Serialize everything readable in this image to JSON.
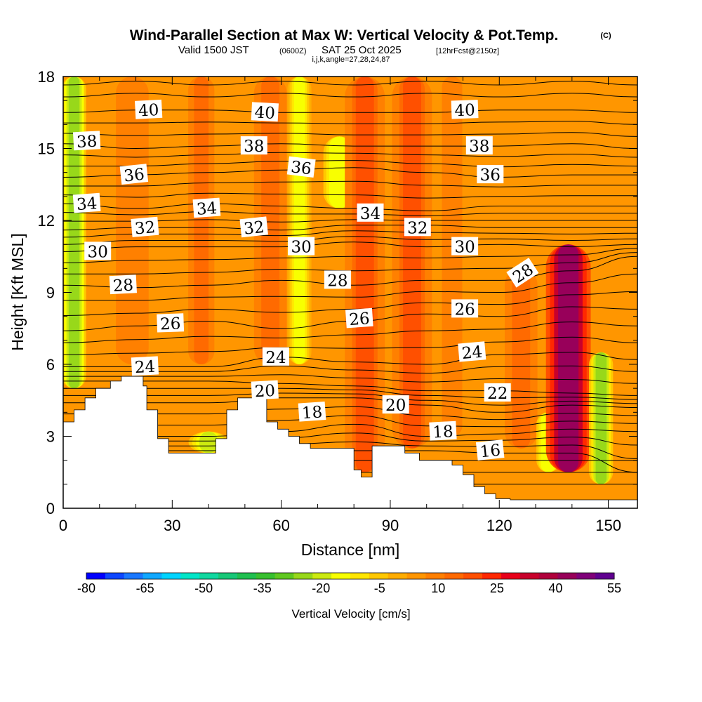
{
  "header": {
    "title": "Wind-Parallel Section at Max W: Vertical Velocity & Pot.Temp.",
    "title_mark": "(C)",
    "valid_prefix": "Valid 1500 JST",
    "valid_utc": "(0600Z)",
    "valid_date": "SAT 25 Oct 2025",
    "forecast": "[12hrFcst@2150z]",
    "indices": "i,j,k,angle=27,28,24,87"
  },
  "colorbar": {
    "title": "Vertical Velocity [cm/s]",
    "tick_labels": [
      "-80",
      "-65",
      "-50",
      "-35",
      "-20",
      "-5",
      "10",
      "25",
      "40",
      "55"
    ],
    "colors": [
      "#0000ff",
      "#0d47ff",
      "#1a78ff",
      "#10a8ff",
      "#00d4ff",
      "#00e6c8",
      "#10d8a0",
      "#18c878",
      "#20c050",
      "#38c030",
      "#60c820",
      "#98d81a",
      "#ccea10",
      "#f8ff00",
      "#ffe600",
      "#ffc800",
      "#ffad00",
      "#ff9600",
      "#ff8000",
      "#ff6a00",
      "#ff5000",
      "#ff2800",
      "#e8001a",
      "#c8002c",
      "#b0003c",
      "#98005a",
      "#80007a",
      "#600090"
    ]
  },
  "chart_data": {
    "type": "heatmap",
    "title": "Wind-Parallel Section at Max W: Vertical Velocity & Pot.Temp.",
    "xlabel": "Distance [nm]",
    "ylabel": "Height [Kft MSL]",
    "xlim": [
      0,
      158
    ],
    "ylim": [
      0,
      18
    ],
    "x_ticks": [
      0,
      30,
      60,
      90,
      120,
      150
    ],
    "y_ticks": [
      0,
      3,
      6,
      9,
      12,
      15,
      18
    ],
    "x_tick_labels": [
      "0",
      "30",
      "60",
      "90",
      "120",
      "150"
    ],
    "y_tick_labels": [
      "0",
      "3",
      "6",
      "9",
      "12",
      "15",
      "18"
    ],
    "fill_variable": "Vertical Velocity [cm/s]",
    "contour_variable": "Pot.Temp. (C)",
    "colorbar_range": [
      -80,
      55
    ],
    "background_value": 3,
    "velocity_features": [
      {
        "x": 3,
        "w": 1.5,
        "value": -30,
        "from": 5,
        "to": 18
      },
      {
        "x": 19,
        "w": 2.5,
        "value": 12,
        "from": 6,
        "to": 18
      },
      {
        "x": 38,
        "w": 2,
        "value": 14,
        "from": 6,
        "to": 18
      },
      {
        "x": 40,
        "w": 2.5,
        "value": -22,
        "from": 2.3,
        "to": 3.2
      },
      {
        "x": 57,
        "w": 2.5,
        "value": 13,
        "from": 6,
        "to": 18
      },
      {
        "x": 65,
        "w": 1.5,
        "value": -15,
        "from": 6,
        "to": 18
      },
      {
        "x": 76,
        "w": 2,
        "value": -20,
        "from": 12.5,
        "to": 15.5
      },
      {
        "x": 83,
        "w": 2.5,
        "value": 20,
        "from": 1.5,
        "to": 18
      },
      {
        "x": 96,
        "w": 2.5,
        "value": 20,
        "from": 2.5,
        "to": 18
      },
      {
        "x": 107,
        "w": 2,
        "value": 10,
        "from": 3,
        "to": 18
      },
      {
        "x": 126,
        "w": 2.5,
        "value": 14,
        "from": 2.5,
        "to": 10
      },
      {
        "x": 133.5,
        "w": 1.5,
        "value": -20,
        "from": 1.5,
        "to": 4
      },
      {
        "x": 139,
        "w": 2.8,
        "value": 50,
        "from": 1.5,
        "to": 11
      },
      {
        "x": 148,
        "w": 1.5,
        "value": -28,
        "from": 1,
        "to": 6.5
      }
    ],
    "terrain": [
      [
        0,
        3.6
      ],
      [
        3,
        3.6
      ],
      [
        3,
        4.1
      ],
      [
        6,
        4.1
      ],
      [
        6,
        4.6
      ],
      [
        9,
        4.6
      ],
      [
        9,
        5.0
      ],
      [
        13,
        5.0
      ],
      [
        13,
        5.3
      ],
      [
        16,
        5.3
      ],
      [
        16,
        5.5
      ],
      [
        22,
        5.5
      ],
      [
        22,
        5.1
      ],
      [
        23,
        5.1
      ],
      [
        23,
        4.1
      ],
      [
        26,
        4.1
      ],
      [
        26,
        2.9
      ],
      [
        29,
        2.9
      ],
      [
        29,
        2.3
      ],
      [
        42,
        2.3
      ],
      [
        42,
        2.9
      ],
      [
        45,
        2.9
      ],
      [
        45,
        4.1
      ],
      [
        48,
        4.1
      ],
      [
        48,
        4.6
      ],
      [
        56,
        4.6
      ],
      [
        56,
        3.6
      ],
      [
        59,
        3.6
      ],
      [
        59,
        3.3
      ],
      [
        62,
        3.3
      ],
      [
        62,
        3.0
      ],
      [
        65,
        3.0
      ],
      [
        65,
        2.7
      ],
      [
        68,
        2.7
      ],
      [
        68,
        2.5
      ],
      [
        80,
        2.5
      ],
      [
        80,
        1.6
      ],
      [
        82,
        1.6
      ],
      [
        82,
        1.3
      ],
      [
        85,
        1.3
      ],
      [
        85,
        2.6
      ],
      [
        94,
        2.6
      ],
      [
        94,
        2.3
      ],
      [
        98,
        2.3
      ],
      [
        98,
        2.0
      ],
      [
        107,
        2.0
      ],
      [
        107,
        1.8
      ],
      [
        110,
        1.8
      ],
      [
        110,
        1.4
      ],
      [
        113,
        1.4
      ],
      [
        113,
        0.9
      ],
      [
        116,
        0.9
      ],
      [
        116,
        0.6
      ],
      [
        119,
        0.6
      ],
      [
        119,
        0.4
      ],
      [
        123,
        0.4
      ],
      [
        123,
        0.35
      ],
      [
        158,
        0.35
      ]
    ],
    "contour_levels": [
      {
        "theta": 16,
        "y": [
          2.4,
          2.4,
          2.4,
          2.4,
          2.4,
          2.4,
          2.3,
          2.3,
          1.5
        ]
      },
      {
        "theta": 18,
        "y": [
          3.0,
          3.0,
          3.0,
          3.2,
          3.5,
          3.0,
          3.1,
          3.3,
          3.2
        ]
      },
      {
        "theta": 20,
        "y": [
          4.4,
          4.4,
          4.4,
          4.6,
          4.6,
          4.3,
          4.0,
          4.3,
          4.2
        ]
      },
      {
        "theta": 22,
        "y": [
          5.3,
          5.3,
          5.3,
          5.2,
          5.1,
          4.9,
          4.9,
          4.8,
          4.7
        ]
      },
      {
        "theta": 24,
        "y": [
          5.9,
          5.9,
          5.9,
          6.3,
          6.1,
          6.0,
          6.4,
          6.5,
          6.2
        ]
      },
      {
        "theta": 26,
        "y": [
          7.4,
          7.6,
          7.8,
          7.5,
          7.8,
          8.1,
          8.0,
          8.4,
          8.3
        ]
      },
      {
        "theta": 28,
        "y": [
          9.3,
          9.2,
          9.3,
          9.5,
          9.3,
          9.5,
          9.5,
          9.9,
          10.5
        ]
      },
      {
        "theta": 30,
        "y": [
          10.7,
          10.9,
          10.9,
          10.9,
          11.1,
          10.9,
          11.0,
          10.9,
          11.0
        ]
      },
      {
        "theta": 32,
        "y": [
          11.6,
          11.7,
          11.7,
          11.6,
          11.8,
          11.8,
          11.7,
          11.7,
          11.7
        ]
      },
      {
        "theta": 34,
        "y": [
          12.7,
          12.5,
          12.7,
          12.6,
          12.5,
          12.4,
          12.6,
          12.6,
          12.6
        ]
      },
      {
        "theta": 36,
        "y": [
          13.8,
          13.9,
          14.0,
          14.1,
          14.2,
          14.0,
          13.8,
          13.9,
          13.9
        ]
      },
      {
        "theta": 38,
        "y": [
          15.2,
          15.0,
          15.1,
          15.2,
          15.1,
          15.1,
          15.1,
          15.2,
          15.0
        ]
      },
      {
        "theta": 40,
        "y": [
          16.5,
          16.6,
          16.6,
          16.5,
          16.5,
          16.5,
          16.6,
          16.6,
          16.5
        ]
      }
    ],
    "contour_x": [
      0,
      20,
      40,
      60,
      80,
      100,
      120,
      140,
      158
    ],
    "contour_labels": [
      {
        "text": "40",
        "x": 23.5,
        "y": 16.6,
        "angle": -3
      },
      {
        "text": "40",
        "x": 55.5,
        "y": 16.5,
        "angle": 3
      },
      {
        "text": "40",
        "x": 110.5,
        "y": 16.6,
        "angle": -2
      },
      {
        "text": "38",
        "x": 6.5,
        "y": 15.3,
        "angle": -3
      },
      {
        "text": "38",
        "x": 52.5,
        "y": 15.1,
        "angle": 0
      },
      {
        "text": "38",
        "x": 114.5,
        "y": 15.1,
        "angle": 0
      },
      {
        "text": "36",
        "x": 19.5,
        "y": 13.9,
        "angle": -6
      },
      {
        "text": "36",
        "x": 65.5,
        "y": 14.2,
        "angle": 7
      },
      {
        "text": "36",
        "x": 117.5,
        "y": 13.9,
        "angle": 0
      },
      {
        "text": "34",
        "x": 6.5,
        "y": 12.7,
        "angle": -4
      },
      {
        "text": "34",
        "x": 39.5,
        "y": 12.5,
        "angle": -4
      },
      {
        "text": "34",
        "x": 84.5,
        "y": 12.3,
        "angle": 0
      },
      {
        "text": "32",
        "x": 22.5,
        "y": 11.7,
        "angle": -5
      },
      {
        "text": "32",
        "x": 52.5,
        "y": 11.7,
        "angle": -6
      },
      {
        "text": "32",
        "x": 97.5,
        "y": 11.7,
        "angle": 0
      },
      {
        "text": "30",
        "x": 9.5,
        "y": 10.7,
        "angle": 0
      },
      {
        "text": "30",
        "x": 65.5,
        "y": 10.9,
        "angle": 0
      },
      {
        "text": "30",
        "x": 110.5,
        "y": 10.9,
        "angle": 0
      },
      {
        "text": "28",
        "x": 16.5,
        "y": 9.3,
        "angle": -3
      },
      {
        "text": "28",
        "x": 75.5,
        "y": 9.5,
        "angle": 0
      },
      {
        "text": "28",
        "x": 126.5,
        "y": 9.8,
        "angle": -33
      },
      {
        "text": "26",
        "x": 29.5,
        "y": 7.7,
        "angle": -2
      },
      {
        "text": "26",
        "x": 81.5,
        "y": 7.9,
        "angle": -4
      },
      {
        "text": "26",
        "x": 110.5,
        "y": 8.3,
        "angle": 0
      },
      {
        "text": "24",
        "x": 22.5,
        "y": 5.9,
        "angle": -3
      },
      {
        "text": "24",
        "x": 58.5,
        "y": 6.3,
        "angle": 0
      },
      {
        "text": "24",
        "x": 112.5,
        "y": 6.5,
        "angle": -5
      },
      {
        "text": "22",
        "x": 119.5,
        "y": 4.8,
        "angle": 0
      },
      {
        "text": "20",
        "x": 55.5,
        "y": 4.9,
        "angle": -3
      },
      {
        "text": "20",
        "x": 91.5,
        "y": 4.3,
        "angle": 0
      },
      {
        "text": "18",
        "x": 68.5,
        "y": 4.0,
        "angle": -4
      },
      {
        "text": "18",
        "x": 104.5,
        "y": 3.2,
        "angle": -3
      },
      {
        "text": "16",
        "x": 117.5,
        "y": 2.4,
        "angle": -6
      }
    ]
  }
}
